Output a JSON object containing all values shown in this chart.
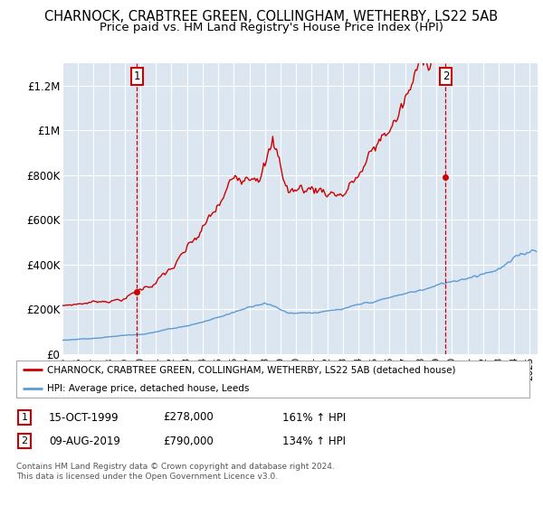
{
  "title": "CHARNOCK, CRABTREE GREEN, COLLINGHAM, WETHERBY, LS22 5AB",
  "subtitle": "Price paid vs. HM Land Registry's House Price Index (HPI)",
  "ylim": [
    0,
    1300000
  ],
  "xlim_start": 1995.0,
  "xlim_end": 2025.5,
  "plot_bg_color": "#dce6f1",
  "grid_color": "#ffffff",
  "red_color": "#cc0000",
  "blue_color": "#5b9bd5",
  "title_fontsize": 10.5,
  "subtitle_fontsize": 9.5,
  "ytick_labels": [
    "£0",
    "£200K",
    "£400K",
    "£600K",
    "£800K",
    "£1M",
    "£1.2M"
  ],
  "ytick_values": [
    0,
    200000,
    400000,
    600000,
    800000,
    1000000,
    1200000
  ],
  "marker1_x": 1999.79,
  "marker1_y": 278000,
  "marker2_x": 2019.6,
  "marker2_y": 790000,
  "legend_label_red": "CHARNOCK, CRABTREE GREEN, COLLINGHAM, WETHERBY, LS22 5AB (detached house)",
  "legend_label_blue": "HPI: Average price, detached house, Leeds",
  "note1_date": "15-OCT-1999",
  "note1_price": "£278,000",
  "note1_hpi": "161% ↑ HPI",
  "note2_date": "09-AUG-2019",
  "note2_price": "£790,000",
  "note2_hpi": "134% ↑ HPI",
  "footer": "Contains HM Land Registry data © Crown copyright and database right 2024.\nThis data is licensed under the Open Government Licence v3.0."
}
